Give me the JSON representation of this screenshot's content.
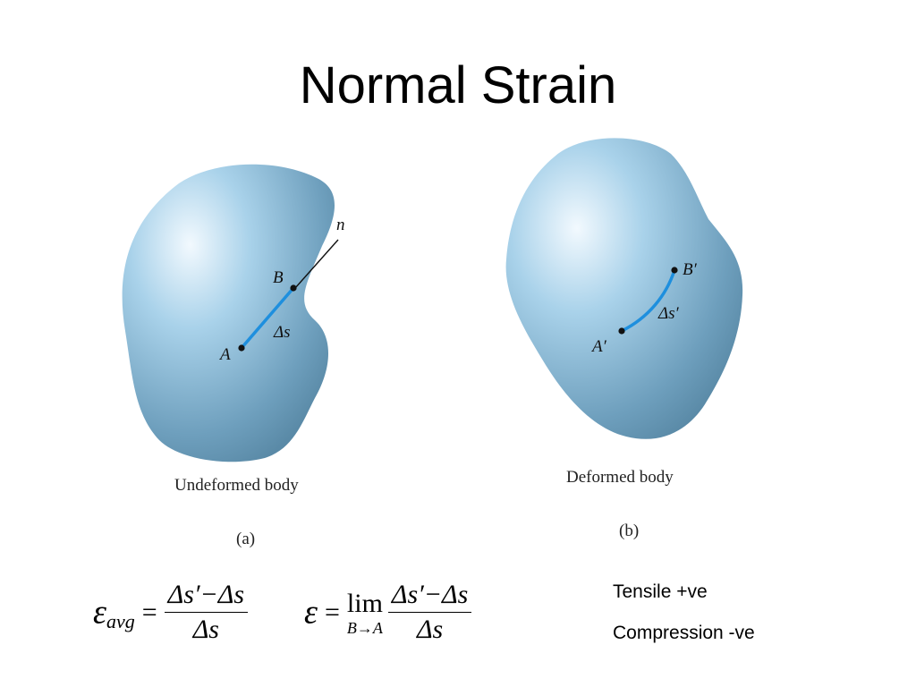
{
  "title": "Normal Strain",
  "figure_a": {
    "label_n": "n",
    "label_B": "B",
    "label_A": "A",
    "label_ds": "Δs",
    "caption": "Undeformed body",
    "sublabel": "(a)"
  },
  "figure_b": {
    "label_B": "B′",
    "label_A": "A′",
    "label_ds": "Δs′",
    "caption": "Deformed body",
    "sublabel": "(b)"
  },
  "equation_avg": {
    "lhs_symbol": "ε",
    "lhs_subscript": "avg",
    "equals": "=",
    "numerator": "Δs′−Δs",
    "denominator": "Δs"
  },
  "equation_limit": {
    "lhs_symbol": "ε",
    "equals": "=",
    "operator": "lim",
    "limit_sub": "B→A",
    "numerator": "Δs′−Δs",
    "denominator": "Δs"
  },
  "notes": {
    "tensile": "Tensile +ve",
    "compression": "Compression -ve"
  },
  "colors": {
    "body_light": "#eef7fd",
    "body_mid": "#9ccbe6",
    "body_dark": "#5e90ad",
    "line_blue": "#1e8fde"
  }
}
